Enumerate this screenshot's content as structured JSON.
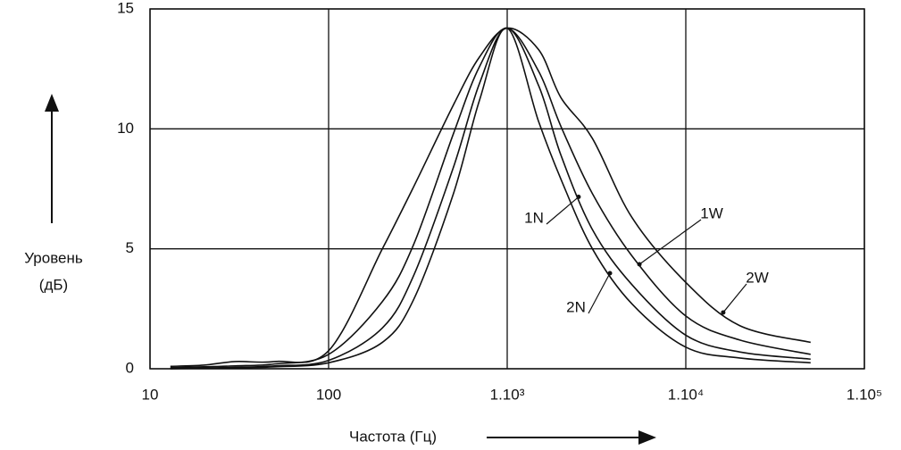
{
  "chart_data": {
    "type": "line",
    "x_label": "Частота (Гц)",
    "y_label_lines": [
      "Уровень",
      "(дБ)"
    ],
    "xscale": "log",
    "grid": true,
    "xlim": [
      10,
      100000
    ],
    "xticks": [
      10,
      100,
      {
        "value": 1000,
        "label": "1.10³"
      },
      {
        "value": 10000,
        "label": "1.10⁴"
      },
      {
        "value": 100000,
        "label": "1.10⁵"
      }
    ],
    "ylim": [
      0,
      15
    ],
    "yticks": [
      0,
      5,
      10,
      15
    ],
    "x": [
      13,
      20,
      30,
      50,
      100,
      200,
      300,
      500,
      700,
      1000,
      1500,
      2000,
      3000,
      5000,
      10000,
      20000,
      50000
    ],
    "series": [
      {
        "name": "2W",
        "color": "#111111",
        "values": [
          0.1,
          0.15,
          0.3,
          0.3,
          0.75,
          5.0,
          7.6,
          11.0,
          13.0,
          14.2,
          13.3,
          11.3,
          9.6,
          6.3,
          3.6,
          1.8,
          1.1
        ]
      },
      {
        "name": "1W",
        "color": "#111111",
        "values": [
          0.05,
          0.08,
          0.12,
          0.2,
          0.6,
          2.8,
          5.2,
          9.8,
          12.6,
          14.2,
          12.4,
          10.1,
          7.3,
          4.7,
          2.2,
          1.2,
          0.6
        ]
      },
      {
        "name": "1N",
        "color": "#111111",
        "values": [
          0,
          0.03,
          0.06,
          0.12,
          0.35,
          1.7,
          3.9,
          8.4,
          11.9,
          14.2,
          11.8,
          8.9,
          5.8,
          3.5,
          1.4,
          0.7,
          0.4
        ]
      },
      {
        "name": "2N",
        "color": "#111111",
        "values": [
          0,
          0.02,
          0.04,
          0.08,
          0.25,
          1.1,
          2.9,
          7.3,
          11.2,
          14.2,
          10.3,
          7.9,
          5.0,
          2.7,
          0.9,
          0.45,
          0.25
        ]
      }
    ]
  }
}
